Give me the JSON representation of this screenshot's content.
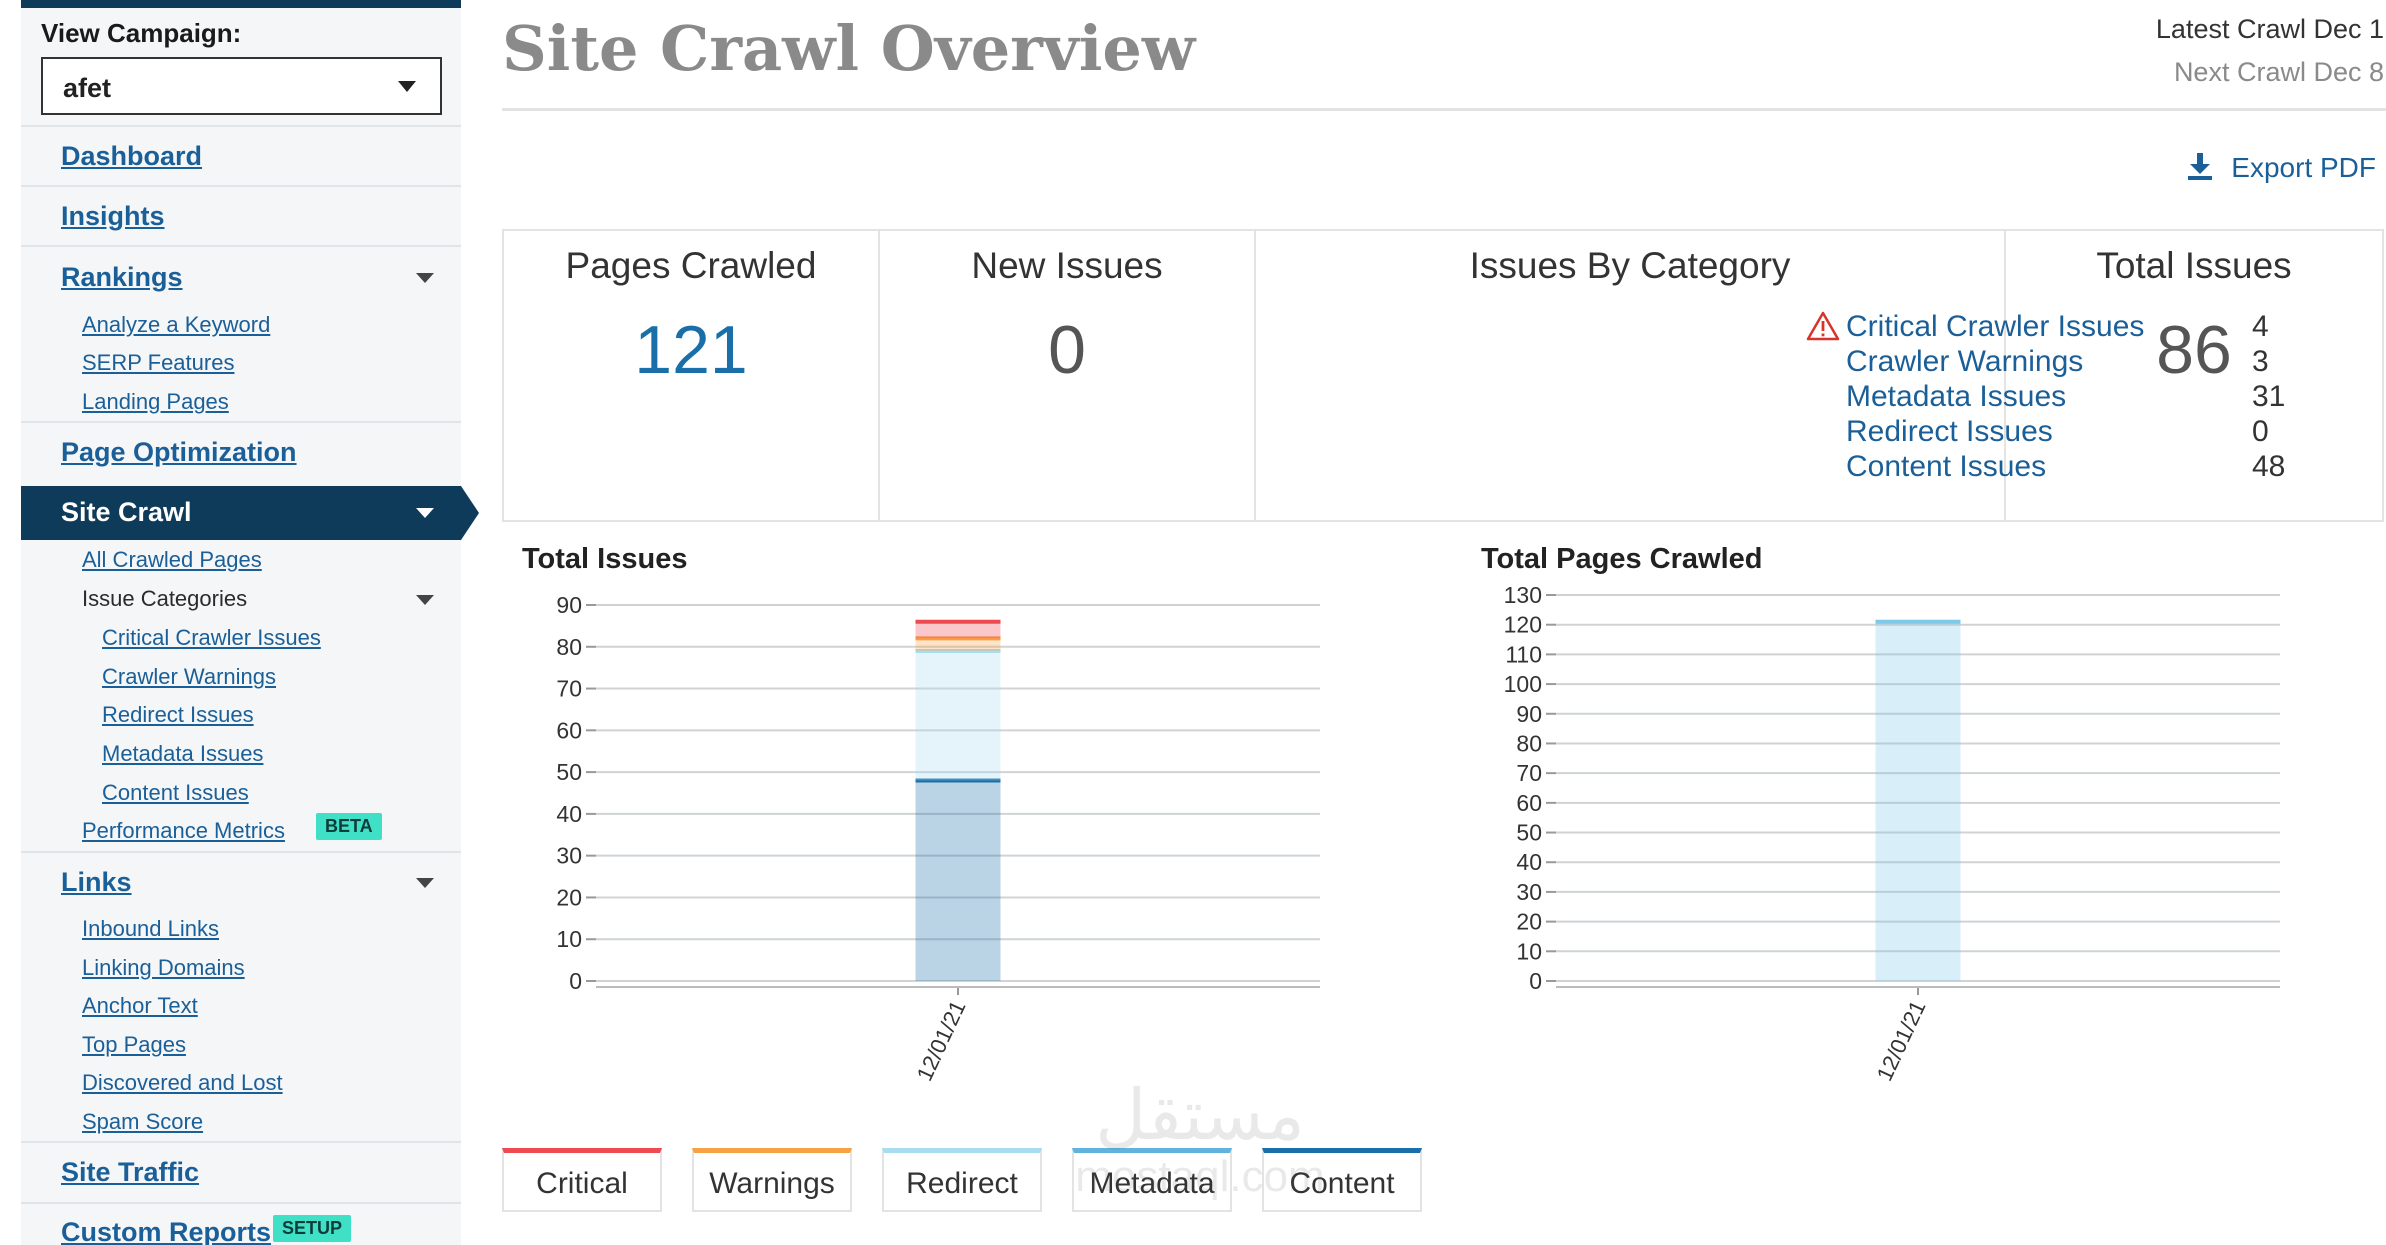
{
  "sidebar": {
    "view_campaign_label": "View Campaign:",
    "campaign_value": "afet",
    "items": {
      "dashboard": "Dashboard",
      "insights": "Insights",
      "rankings": "Rankings",
      "analyze_keyword": "Analyze a Keyword",
      "serp_features": "SERP Features",
      "landing_pages": "Landing Pages",
      "page_optimization": "Page Optimization",
      "site_crawl": "Site Crawl",
      "all_crawled_pages": "All Crawled Pages",
      "issue_categories": "Issue Categories",
      "critical_crawler_issues": "Critical Crawler Issues",
      "crawler_warnings": "Crawler Warnings",
      "redirect_issues": "Redirect Issues",
      "metadata_issues": "Metadata Issues",
      "content_issues": "Content Issues",
      "performance_metrics": "Performance Metrics",
      "beta_badge": "BETA",
      "links": "Links",
      "inbound_links": "Inbound Links",
      "linking_domains": "Linking Domains",
      "anchor_text": "Anchor Text",
      "top_pages": "Top Pages",
      "discovered_and_lost": "Discovered and Lost",
      "spam_score": "Spam Score",
      "site_traffic": "Site Traffic",
      "custom_reports": "Custom Reports",
      "setup_badge": "SETUP"
    }
  },
  "header": {
    "title": "Site Crawl Overview",
    "latest_crawl": "Latest Crawl Dec 1",
    "next_crawl": "Next Crawl Dec 8",
    "export_label": "Export PDF"
  },
  "stats": {
    "pages_crawled_label": "Pages Crawled",
    "pages_crawled_value": "121",
    "new_issues_label": "New Issues",
    "new_issues_value": "0",
    "issues_by_category_label": "Issues By Category",
    "categories": [
      {
        "name": "Critical Crawler Issues",
        "count": "4"
      },
      {
        "name": "Crawler Warnings",
        "count": "3"
      },
      {
        "name": "Metadata Issues",
        "count": "31"
      },
      {
        "name": "Redirect Issues",
        "count": "0"
      },
      {
        "name": "Content Issues",
        "count": "48"
      }
    ],
    "total_issues_label": "Total Issues",
    "total_issues_value": "86"
  },
  "chart_data": [
    {
      "type": "bar",
      "stacked": true,
      "title": "Total Issues",
      "categories": [
        "12/01/21"
      ],
      "ylim": [
        0,
        90
      ],
      "yticks": [
        0,
        10,
        20,
        30,
        40,
        50,
        60,
        70,
        80,
        90
      ],
      "grid": true,
      "series": [
        {
          "name": "Content",
          "values": [
            48
          ],
          "color": "#1b6fa8"
        },
        {
          "name": "Metadata",
          "values": [
            31
          ],
          "color": "#a8dcef"
        },
        {
          "name": "Redirect",
          "values": [
            0
          ],
          "color": "#a8dcef"
        },
        {
          "name": "Warnings",
          "values": [
            3
          ],
          "color": "#f7a145"
        },
        {
          "name": "Critical",
          "values": [
            4
          ],
          "color": "#ee4a52"
        }
      ]
    },
    {
      "type": "bar",
      "title": "Total Pages Crawled",
      "categories": [
        "12/01/21"
      ],
      "ylim": [
        0,
        130
      ],
      "yticks": [
        0,
        10,
        20,
        30,
        40,
        50,
        60,
        70,
        80,
        90,
        100,
        110,
        120,
        130
      ],
      "grid": true,
      "series": [
        {
          "name": "",
          "values": [
            121
          ],
          "color": "#7ec8e8"
        }
      ]
    }
  ],
  "legend": {
    "items": [
      {
        "label": "Critical",
        "color": "#ee4a52"
      },
      {
        "label": "Warnings",
        "color": "#f7a145"
      },
      {
        "label": "Redirect",
        "color": "#a8dcef"
      },
      {
        "label": "Metadata",
        "color": "#5fb3dc"
      },
      {
        "label": "Content",
        "color": "#1b6fa8"
      }
    ]
  },
  "watermark": {
    "arabic": "مستقل",
    "latin": "mostaql.com"
  }
}
